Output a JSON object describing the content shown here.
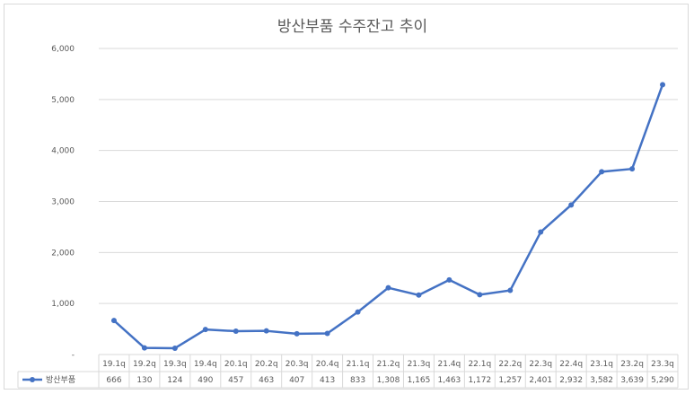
{
  "chart_data": {
    "type": "line",
    "title": "방산부품 수주잔고 추이",
    "categories": [
      "19.1q",
      "19.2q",
      "19.3q",
      "19.4q",
      "20.1q",
      "20.2q",
      "20.3q",
      "20.4q",
      "21.1q",
      "21.2q",
      "21.3q",
      "21.4q",
      "22.1q",
      "22.2q",
      "22.3q",
      "22.4q",
      "23.1q",
      "23.2q",
      "23.3q"
    ],
    "series": [
      {
        "name": "방산부품",
        "values": [
          666,
          130,
          124,
          490,
          457,
          463,
          407,
          413,
          833,
          1308,
          1165,
          1463,
          1172,
          1257,
          2401,
          2932,
          3582,
          3639,
          5290
        ],
        "labels": [
          "666",
          "130",
          "124",
          "490",
          "457",
          "463",
          "407",
          "413",
          "833",
          "1,308",
          "1,165",
          "1,463",
          "1,172",
          "1,257",
          "2,401",
          "2,932",
          "3,582",
          "3,639",
          "5,290"
        ],
        "color": "#4472c4"
      }
    ],
    "ylim": [
      0,
      6000
    ],
    "yticks": [
      0,
      1000,
      2000,
      3000,
      4000,
      5000,
      6000
    ],
    "yticklabels": [
      "-",
      "1,000",
      "2,000",
      "3,000",
      "4,000",
      "5,000",
      "6,000"
    ],
    "grid": true,
    "legend": "data-table"
  }
}
